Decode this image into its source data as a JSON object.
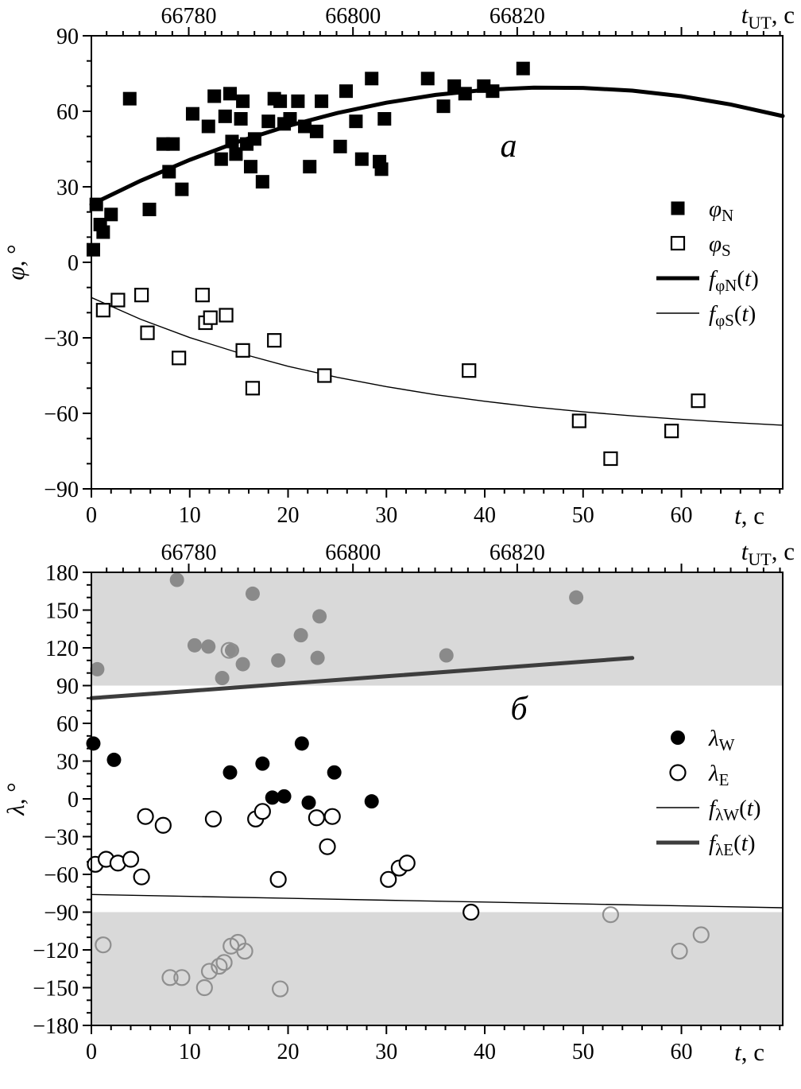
{
  "colors": {
    "band": "#d9d9d9",
    "black": "#000000",
    "gray_marker": "#8a8a8a",
    "thick_gray_line": "#3d3d3d"
  },
  "chart_data": [
    {
      "type": "scatter",
      "panel_label": "а",
      "x_axis": {
        "label_segments": [
          {
            "text": "t",
            "italic": true
          },
          {
            "text": ", c"
          }
        ],
        "min": 0,
        "max": 70.3,
        "major_ticks": [
          0,
          10,
          20,
          30,
          40,
          50,
          60
        ],
        "minor_step": 2
      },
      "top_axis": {
        "label_segments": [
          {
            "text": "t",
            "italic": true
          },
          {
            "text": "UT",
            "sub": true
          },
          {
            "text": ", c"
          }
        ],
        "ticks": [
          {
            "label": "66780",
            "t": 9.9
          },
          {
            "label": "66800",
            "t": 26.6
          },
          {
            "label": "66820",
            "t": 43.3
          }
        ],
        "minor_step": 1.67
      },
      "y_axis": {
        "label_segments": [
          {
            "text": "φ",
            "italic": true
          },
          {
            "text": ", °"
          }
        ],
        "min": -90,
        "max": 90,
        "major_ticks": [
          -90,
          -60,
          -30,
          0,
          30,
          60,
          90
        ],
        "minor_step": 10
      },
      "series": [
        {
          "name": "phi_N",
          "marker": "square-filled",
          "points": [
            [
              0.2,
              5
            ],
            [
              0.5,
              23
            ],
            [
              0.9,
              15
            ],
            [
              1.2,
              12
            ],
            [
              2.0,
              19
            ],
            [
              3.9,
              65
            ],
            [
              5.9,
              21
            ],
            [
              7.3,
              47
            ],
            [
              7.9,
              36
            ],
            [
              8.3,
              47
            ],
            [
              9.2,
              29
            ],
            [
              10.3,
              59
            ],
            [
              11.9,
              54
            ],
            [
              12.5,
              66
            ],
            [
              13.2,
              41
            ],
            [
              13.6,
              58
            ],
            [
              14.1,
              67
            ],
            [
              14.3,
              48
            ],
            [
              14.7,
              43
            ],
            [
              15.2,
              57
            ],
            [
              15.4,
              64
            ],
            [
              15.8,
              47
            ],
            [
              16.2,
              38
            ],
            [
              16.6,
              49
            ],
            [
              17.4,
              32
            ],
            [
              18.0,
              56
            ],
            [
              18.6,
              65
            ],
            [
              19.2,
              64
            ],
            [
              19.6,
              55
            ],
            [
              20.2,
              57
            ],
            [
              21.0,
              64
            ],
            [
              21.7,
              54
            ],
            [
              22.2,
              38
            ],
            [
              22.9,
              52
            ],
            [
              23.4,
              64
            ],
            [
              25.3,
              46
            ],
            [
              25.9,
              68
            ],
            [
              26.9,
              56
            ],
            [
              27.5,
              41
            ],
            [
              28.5,
              73
            ],
            [
              29.3,
              40
            ],
            [
              29.5,
              37
            ],
            [
              29.8,
              57
            ],
            [
              34.2,
              73
            ],
            [
              35.8,
              62
            ],
            [
              36.9,
              70
            ],
            [
              38.0,
              67
            ],
            [
              39.9,
              70
            ],
            [
              40.8,
              68
            ],
            [
              43.9,
              77
            ]
          ]
        },
        {
          "name": "phi_S",
          "marker": "square-open",
          "points": [
            [
              1.2,
              -19
            ],
            [
              2.7,
              -15
            ],
            [
              5.1,
              -13
            ],
            [
              5.7,
              -28
            ],
            [
              8.9,
              -38
            ],
            [
              11.3,
              -13
            ],
            [
              11.6,
              -24
            ],
            [
              12.1,
              -22
            ],
            [
              13.7,
              -21
            ],
            [
              15.4,
              -35
            ],
            [
              16.4,
              -50
            ],
            [
              18.6,
              -31
            ],
            [
              23.7,
              -45
            ],
            [
              38.4,
              -43
            ],
            [
              49.6,
              -63
            ],
            [
              52.8,
              -78
            ],
            [
              59.0,
              -67
            ],
            [
              61.7,
              -55
            ]
          ]
        }
      ],
      "curves": [
        {
          "name": "f_phiN",
          "width": 5,
          "color": "#000000",
          "points": [
            [
              0,
              23
            ],
            [
              5,
              32.4
            ],
            [
              10,
              40.7
            ],
            [
              15,
              48.0
            ],
            [
              20,
              54.2
            ],
            [
              25,
              59.3
            ],
            [
              30,
              63.4
            ],
            [
              35,
              66.5
            ],
            [
              40,
              68.5
            ],
            [
              45,
              69.4
            ],
            [
              50,
              69.3
            ],
            [
              55,
              68.2
            ],
            [
              60,
              66.0
            ],
            [
              65,
              62.7
            ],
            [
              70.3,
              58.1
            ]
          ]
        },
        {
          "name": "f_phiS",
          "width": 1.4,
          "color": "#000000",
          "points": [
            [
              0,
              -14
            ],
            [
              5,
              -22.6
            ],
            [
              10,
              -29.9
            ],
            [
              15,
              -36.0
            ],
            [
              20,
              -41.3
            ],
            [
              25,
              -45.7
            ],
            [
              30,
              -49.4
            ],
            [
              35,
              -52.6
            ],
            [
              40,
              -55.2
            ],
            [
              45,
              -57.5
            ],
            [
              50,
              -59.4
            ],
            [
              55,
              -61.0
            ],
            [
              60,
              -62.4
            ],
            [
              65,
              -63.6
            ],
            [
              70.3,
              -64.7
            ]
          ]
        }
      ],
      "legend": {
        "items": [
          {
            "marker": "square-filled",
            "label_segments": [
              {
                "text": "φ",
                "italic": true
              },
              {
                "text": "N",
                "sub": true
              }
            ]
          },
          {
            "marker": "square-open",
            "label_segments": [
              {
                "text": "φ",
                "italic": true
              },
              {
                "text": "S",
                "sub": true
              }
            ]
          },
          {
            "marker": "line-thick",
            "color": "#000000",
            "label_segments": [
              {
                "text": "f",
                "italic": true
              },
              {
                "text": "φN",
                "sub": true
              },
              {
                "text": "("
              },
              {
                "text": "t",
                "italic": true
              },
              {
                "text": ")"
              }
            ]
          },
          {
            "marker": "line-thin",
            "color": "#000000",
            "label_segments": [
              {
                "text": "f",
                "italic": true
              },
              {
                "text": "φS",
                "sub": true
              },
              {
                "text": "("
              },
              {
                "text": "t",
                "italic": true
              },
              {
                "text": ")"
              }
            ]
          }
        ]
      }
    },
    {
      "type": "scatter",
      "panel_label": "б",
      "shaded_bands": [
        [
          90,
          180
        ],
        [
          -180,
          -90
        ]
      ],
      "x_axis": {
        "label_segments": [
          {
            "text": "t",
            "italic": true
          },
          {
            "text": ", c"
          }
        ],
        "min": 0,
        "max": 70.3,
        "major_ticks": [
          0,
          10,
          20,
          30,
          40,
          50,
          60
        ],
        "minor_step": 2
      },
      "top_axis": {
        "label_segments": [
          {
            "text": "t",
            "italic": true
          },
          {
            "text": "UT",
            "sub": true
          },
          {
            "text": ", c"
          }
        ],
        "ticks": [
          {
            "label": "66780",
            "t": 9.9
          },
          {
            "label": "66800",
            "t": 26.6
          },
          {
            "label": "66820",
            "t": 43.3
          }
        ],
        "minor_step": 1.67
      },
      "y_axis": {
        "label_segments": [
          {
            "text": "λ",
            "italic": true
          },
          {
            "text": ", °"
          }
        ],
        "min": -180,
        "max": 180,
        "major_ticks": [
          -180,
          -150,
          -120,
          -90,
          -60,
          -30,
          0,
          30,
          60,
          90,
          120,
          150,
          180
        ],
        "minor_step": 10
      },
      "series": [
        {
          "name": "lambda_W",
          "marker": "circle-filled",
          "points": [
            [
              0.2,
              44
            ],
            [
              2.3,
              31
            ],
            [
              14.1,
              21
            ],
            [
              17.4,
              28
            ],
            [
              18.4,
              1
            ],
            [
              19.6,
              2
            ],
            [
              21.4,
              44
            ],
            [
              22.1,
              -3
            ],
            [
              24.7,
              21
            ],
            [
              28.5,
              -2
            ],
            [
              0.6,
              103
            ],
            [
              8.7,
              174
            ],
            [
              10.5,
              122
            ],
            [
              11.9,
              121
            ],
            [
              13.3,
              96
            ],
            [
              14.3,
              118
            ],
            [
              15.4,
              107
            ],
            [
              16.4,
              163
            ],
            [
              19.0,
              110
            ],
            [
              21.3,
              130
            ],
            [
              23.0,
              112
            ],
            [
              23.2,
              145
            ],
            [
              36.1,
              114
            ],
            [
              49.3,
              160
            ]
          ]
        },
        {
          "name": "lambda_E",
          "marker": "circle-open",
          "points": [
            [
              0.4,
              -52
            ],
            [
              1.5,
              -48
            ],
            [
              2.7,
              -51
            ],
            [
              4.0,
              -48
            ],
            [
              5.1,
              -62
            ],
            [
              5.5,
              -14
            ],
            [
              7.3,
              -21
            ],
            [
              12.4,
              -16
            ],
            [
              16.7,
              -16
            ],
            [
              17.4,
              -10
            ],
            [
              19.0,
              -64
            ],
            [
              22.9,
              -15
            ],
            [
              24.0,
              -38
            ],
            [
              24.5,
              -14
            ],
            [
              30.2,
              -64
            ],
            [
              31.3,
              -55
            ],
            [
              32.1,
              -51
            ],
            [
              38.6,
              -90
            ],
            [
              14.0,
              118
            ],
            [
              1.2,
              -116
            ],
            [
              8.0,
              -142
            ],
            [
              9.2,
              -142
            ],
            [
              11.5,
              -150
            ],
            [
              12.0,
              -137
            ],
            [
              13.0,
              -133
            ],
            [
              13.5,
              -130
            ],
            [
              14.2,
              -117
            ],
            [
              14.9,
              -114
            ],
            [
              15.6,
              -121
            ],
            [
              19.2,
              -151
            ],
            [
              52.8,
              -92
            ],
            [
              59.8,
              -121
            ],
            [
              62.0,
              -108
            ]
          ]
        }
      ],
      "curves": [
        {
          "name": "f_lambdaW",
          "width": 1.4,
          "color": "#000000",
          "points": [
            [
              0,
              -76
            ],
            [
              10,
              -77.5
            ],
            [
              20,
              -79
            ],
            [
              30,
              -80.5
            ],
            [
              40,
              -82
            ],
            [
              50,
              -83.5
            ],
            [
              60,
              -85
            ],
            [
              70.3,
              -86.5
            ]
          ]
        },
        {
          "name": "f_lambdaE",
          "width": 5,
          "color": "#3d3d3d",
          "points": [
            [
              0,
              80
            ],
            [
              10,
              85.8
            ],
            [
              20,
              91.6
            ],
            [
              30,
              97.4
            ],
            [
              40,
              103.2
            ],
            [
              50,
              109
            ],
            [
              55,
              111.9
            ]
          ]
        }
      ],
      "legend": {
        "items": [
          {
            "marker": "circle-filled",
            "label_segments": [
              {
                "text": "λ",
                "italic": true
              },
              {
                "text": "W",
                "sub": true
              }
            ]
          },
          {
            "marker": "circle-open",
            "label_segments": [
              {
                "text": "λ",
                "italic": true
              },
              {
                "text": "E",
                "sub": true
              }
            ]
          },
          {
            "marker": "line-thin",
            "color": "#000000",
            "label_segments": [
              {
                "text": "f",
                "italic": true
              },
              {
                "text": "λW",
                "sub": true
              },
              {
                "text": "("
              },
              {
                "text": "t",
                "italic": true
              },
              {
                "text": ")"
              }
            ]
          },
          {
            "marker": "line-thick",
            "color": "#3d3d3d",
            "label_segments": [
              {
                "text": "f",
                "italic": true
              },
              {
                "text": "λE",
                "sub": true
              },
              {
                "text": "("
              },
              {
                "text": "t",
                "italic": true
              },
              {
                "text": ")"
              }
            ]
          }
        ]
      }
    }
  ]
}
